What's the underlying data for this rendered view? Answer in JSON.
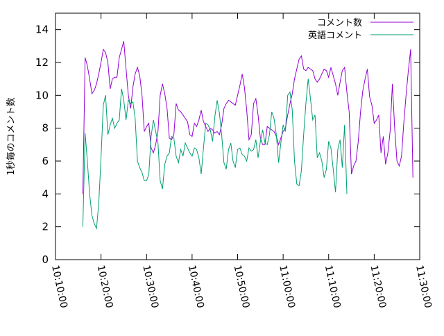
{
  "chart_data": {
    "type": "line",
    "title": "",
    "xlabel": "",
    "ylabel": "1秒毎のコメント数",
    "ylim": [
      0,
      15
    ],
    "xlim": [
      "10:10:00",
      "11:30:00"
    ],
    "y_ticks": [
      "0",
      "2",
      "4",
      "6",
      "8",
      "10",
      "12",
      "14"
    ],
    "x_ticks": [
      "10:10:00",
      "10:20:00",
      "10:30:00",
      "10:40:00",
      "10:50:00",
      "11:00:00",
      "11:10:00",
      "11:20:00",
      "11:30:00"
    ],
    "x_tick_times": [
      10.1667,
      10.3333,
      10.5,
      10.6667,
      10.8333,
      11.0,
      11.1667,
      11.3333,
      11.5
    ],
    "grid": false,
    "legend_position": "top-right",
    "series": [
      {
        "name": "コメント数",
        "color": "#9400d3",
        "points": [
          [
            "10:16:00",
            4.0
          ],
          [
            "10:16:30",
            12.3
          ],
          [
            "10:17:00",
            11.8
          ],
          [
            "10:17:30",
            11.0
          ],
          [
            "10:18:00",
            10.1
          ],
          [
            "10:18:30",
            10.3
          ],
          [
            "10:19:00",
            10.7
          ],
          [
            "10:19:30",
            11.3
          ],
          [
            "10:20:00",
            12.0
          ],
          [
            "10:20:30",
            12.8
          ],
          [
            "10:21:00",
            12.6
          ],
          [
            "10:21:30",
            12.0
          ],
          [
            "10:22:00",
            10.4
          ],
          [
            "10:22:30",
            11.0
          ],
          [
            "10:23:00",
            11.1
          ],
          [
            "10:23:30",
            11.1
          ],
          [
            "10:24:00",
            12.3
          ],
          [
            "10:24:30",
            12.8
          ],
          [
            "10:25:00",
            13.3
          ],
          [
            "10:25:30",
            11.6
          ],
          [
            "10:26:00",
            10.0
          ],
          [
            "10:26:30",
            9.2
          ],
          [
            "10:27:00",
            10.5
          ],
          [
            "10:27:30",
            11.3
          ],
          [
            "10:28:00",
            11.7
          ],
          [
            "10:28:30",
            11.2
          ],
          [
            "10:29:00",
            10.0
          ],
          [
            "10:29:30",
            7.8
          ],
          [
            "10:30:00",
            8.1
          ],
          [
            "10:30:30",
            8.3
          ],
          [
            "10:31:00",
            6.8
          ],
          [
            "10:31:30",
            6.5
          ],
          [
            "10:32:00",
            7.0
          ],
          [
            "10:32:30",
            7.8
          ],
          [
            "10:33:00",
            10.0
          ],
          [
            "10:33:30",
            10.7
          ],
          [
            "10:34:00",
            10.1
          ],
          [
            "10:34:30",
            9.2
          ],
          [
            "10:35:00",
            7.4
          ],
          [
            "10:35:30",
            7.3
          ],
          [
            "10:36:00",
            7.6
          ],
          [
            "10:36:30",
            9.5
          ],
          [
            "10:37:00",
            9.1
          ],
          [
            "10:37:30",
            9.0
          ],
          [
            "10:38:00",
            8.8
          ],
          [
            "10:38:30",
            8.6
          ],
          [
            "10:39:00",
            8.4
          ],
          [
            "10:39:30",
            7.6
          ],
          [
            "10:40:00",
            7.5
          ],
          [
            "10:40:30",
            8.3
          ],
          [
            "10:41:00",
            8.1
          ],
          [
            "10:41:30",
            8.5
          ],
          [
            "10:42:00",
            9.1
          ],
          [
            "10:42:30",
            8.4
          ],
          [
            "10:43:00",
            8.1
          ],
          [
            "10:43:30",
            7.8
          ],
          [
            "10:44:00",
            8.0
          ],
          [
            "10:44:30",
            7.9
          ],
          [
            "10:45:00",
            7.7
          ],
          [
            "10:45:30",
            7.8
          ],
          [
            "10:46:00",
            7.6
          ],
          [
            "10:46:30",
            8.2
          ],
          [
            "10:47:00",
            9.2
          ],
          [
            "10:47:30",
            9.5
          ],
          [
            "10:48:00",
            9.7
          ],
          [
            "10:48:30",
            9.6
          ],
          [
            "10:49:00",
            9.5
          ],
          [
            "10:49:30",
            9.4
          ],
          [
            "10:50:00",
            10.0
          ],
          [
            "10:50:30",
            10.6
          ],
          [
            "10:51:00",
            11.3
          ],
          [
            "10:51:30",
            10.5
          ],
          [
            "10:52:00",
            9.1
          ],
          [
            "10:52:30",
            7.3
          ],
          [
            "10:53:00",
            7.6
          ],
          [
            "10:53:30",
            9.5
          ],
          [
            "10:54:00",
            9.8
          ],
          [
            "10:54:30",
            8.8
          ],
          [
            "10:55:00",
            7.4
          ],
          [
            "10:55:30",
            7.0
          ],
          [
            "10:56:00",
            7.0
          ],
          [
            "10:56:30",
            8.1
          ],
          [
            "10:57:00",
            8.0
          ],
          [
            "10:57:30",
            7.9
          ],
          [
            "10:58:00",
            7.8
          ],
          [
            "10:58:30",
            7.5
          ],
          [
            "10:59:00",
            7.0
          ],
          [
            "10:59:30",
            7.4
          ],
          [
            "11:00:00",
            7.8
          ],
          [
            "11:00:30",
            8.0
          ],
          [
            "11:01:00",
            8.8
          ],
          [
            "11:01:30",
            9.5
          ],
          [
            "11:02:00",
            10.1
          ],
          [
            "11:02:30",
            11.0
          ],
          [
            "11:03:00",
            11.6
          ],
          [
            "11:03:30",
            12.2
          ],
          [
            "11:04:00",
            12.4
          ],
          [
            "11:04:30",
            11.6
          ],
          [
            "11:05:00",
            11.5
          ],
          [
            "11:05:30",
            11.7
          ],
          [
            "11:06:00",
            11.6
          ],
          [
            "11:06:30",
            11.5
          ],
          [
            "11:07:00",
            11.0
          ],
          [
            "11:07:30",
            10.8
          ],
          [
            "11:08:00",
            11.0
          ],
          [
            "11:08:30",
            11.3
          ],
          [
            "11:09:00",
            11.6
          ],
          [
            "11:09:30",
            11.5
          ],
          [
            "11:10:00",
            11.1
          ],
          [
            "11:10:30",
            11.7
          ],
          [
            "11:11:00",
            11.2
          ],
          [
            "11:11:30",
            10.7
          ],
          [
            "11:12:00",
            10.0
          ],
          [
            "11:12:30",
            10.8
          ],
          [
            "11:13:00",
            11.5
          ],
          [
            "11:13:30",
            11.7
          ],
          [
            "11:14:00",
            10.2
          ],
          [
            "11:14:30",
            9.0
          ],
          [
            "11:15:00",
            5.2
          ],
          [
            "11:15:30",
            5.7
          ],
          [
            "11:16:00",
            6.0
          ],
          [
            "11:16:30",
            7.2
          ],
          [
            "11:17:00",
            9.0
          ],
          [
            "11:17:30",
            10.3
          ],
          [
            "11:18:00",
            11.0
          ],
          [
            "11:18:30",
            11.6
          ],
          [
            "11:19:00",
            9.9
          ],
          [
            "11:19:30",
            9.4
          ],
          [
            "11:20:00",
            8.3
          ],
          [
            "11:20:30",
            8.5
          ],
          [
            "11:21:00",
            8.8
          ],
          [
            "11:21:30",
            6.5
          ],
          [
            "11:22:00",
            7.5
          ],
          [
            "11:22:30",
            5.8
          ],
          [
            "11:23:00",
            6.5
          ],
          [
            "11:23:30",
            7.8
          ],
          [
            "11:24:00",
            10.7
          ],
          [
            "11:24:30",
            8.0
          ],
          [
            "11:25:00",
            6.0
          ],
          [
            "11:25:30",
            5.7
          ],
          [
            "11:26:00",
            6.3
          ],
          [
            "11:26:30",
            8.3
          ],
          [
            "11:27:00",
            10.0
          ],
          [
            "11:27:30",
            11.5
          ],
          [
            "11:28:00",
            12.8
          ],
          [
            "11:28:30",
            5.0
          ]
        ]
      },
      {
        "name": "英語コメント",
        "color": "#009e73",
        "points": [
          [
            "10:16:00",
            2.0
          ],
          [
            "10:16:30",
            7.7
          ],
          [
            "10:17:00",
            6.0
          ],
          [
            "10:17:30",
            4.0
          ],
          [
            "10:18:00",
            2.7
          ],
          [
            "10:18:30",
            2.2
          ],
          [
            "10:19:00",
            1.9
          ],
          [
            "10:19:30",
            3.4
          ],
          [
            "10:20:00",
            6.2
          ],
          [
            "10:20:30",
            9.4
          ],
          [
            "10:21:00",
            10.0
          ],
          [
            "10:21:30",
            7.6
          ],
          [
            "10:22:00",
            8.2
          ],
          [
            "10:22:30",
            8.6
          ],
          [
            "10:23:00",
            8.0
          ],
          [
            "10:23:30",
            8.3
          ],
          [
            "10:24:00",
            8.5
          ],
          [
            "10:24:30",
            10.4
          ],
          [
            "10:25:00",
            9.7
          ],
          [
            "10:25:30",
            8.5
          ],
          [
            "10:26:00",
            9.7
          ],
          [
            "10:26:30",
            9.5
          ],
          [
            "10:27:00",
            9.6
          ],
          [
            "10:27:30",
            8.6
          ],
          [
            "10:28:00",
            6.0
          ],
          [
            "10:28:30",
            5.6
          ],
          [
            "10:29:00",
            5.3
          ],
          [
            "10:29:30",
            4.8
          ],
          [
            "10:30:00",
            4.8
          ],
          [
            "10:30:30",
            5.2
          ],
          [
            "10:31:00",
            7.5
          ],
          [
            "10:31:30",
            8.5
          ],
          [
            "10:32:00",
            7.8
          ],
          [
            "10:32:30",
            7.1
          ],
          [
            "10:33:00",
            4.8
          ],
          [
            "10:33:30",
            4.3
          ],
          [
            "10:34:00",
            5.8
          ],
          [
            "10:34:30",
            6.3
          ],
          [
            "10:35:00",
            6.5
          ],
          [
            "10:35:30",
            7.5
          ],
          [
            "10:36:00",
            7.4
          ],
          [
            "10:36:30",
            6.3
          ],
          [
            "10:37:00",
            5.9
          ],
          [
            "10:37:30",
            6.7
          ],
          [
            "10:38:00",
            6.3
          ],
          [
            "10:38:30",
            7.1
          ],
          [
            "10:39:00",
            6.8
          ],
          [
            "10:39:30",
            6.5
          ],
          [
            "10:40:00",
            6.3
          ],
          [
            "10:40:30",
            6.8
          ],
          [
            "10:41:00",
            6.7
          ],
          [
            "10:41:30",
            6.2
          ],
          [
            "10:42:00",
            5.2
          ],
          [
            "10:42:30",
            6.8
          ],
          [
            "10:43:00",
            8.3
          ],
          [
            "10:43:30",
            8.2
          ],
          [
            "10:44:00",
            7.9
          ],
          [
            "10:44:30",
            7.2
          ],
          [
            "10:45:00",
            8.7
          ],
          [
            "10:45:30",
            9.7
          ],
          [
            "10:46:00",
            8.9
          ],
          [
            "10:46:30",
            7.6
          ],
          [
            "10:47:00",
            5.9
          ],
          [
            "10:47:30",
            5.5
          ],
          [
            "10:48:00",
            6.7
          ],
          [
            "10:48:30",
            7.1
          ],
          [
            "10:49:00",
            6.0
          ],
          [
            "10:49:30",
            5.6
          ],
          [
            "10:50:00",
            6.7
          ],
          [
            "10:50:30",
            6.8
          ],
          [
            "10:51:00",
            6.4
          ],
          [
            "10:51:30",
            6.3
          ],
          [
            "10:52:00",
            6.0
          ],
          [
            "10:52:30",
            6.8
          ],
          [
            "10:53:00",
            6.6
          ],
          [
            "10:53:30",
            6.7
          ],
          [
            "10:54:00",
            7.3
          ],
          [
            "10:54:30",
            6.2
          ],
          [
            "10:55:00",
            7.2
          ],
          [
            "10:55:30",
            7.9
          ],
          [
            "10:56:00",
            7.1
          ],
          [
            "10:56:30",
            7.0
          ],
          [
            "10:57:00",
            7.6
          ],
          [
            "10:57:30",
            9.0
          ],
          [
            "10:58:00",
            8.6
          ],
          [
            "10:58:30",
            7.6
          ],
          [
            "10:59:00",
            5.9
          ],
          [
            "10:59:30",
            7.1
          ],
          [
            "11:00:00",
            8.2
          ],
          [
            "11:00:30",
            7.8
          ],
          [
            "11:01:00",
            10.0
          ],
          [
            "11:01:30",
            10.2
          ],
          [
            "11:02:00",
            9.1
          ],
          [
            "11:02:30",
            6.0
          ],
          [
            "11:03:00",
            4.6
          ],
          [
            "11:03:30",
            4.5
          ],
          [
            "11:04:00",
            5.4
          ],
          [
            "11:04:30",
            7.6
          ],
          [
            "11:05:00",
            9.5
          ],
          [
            "11:05:30",
            11.0
          ],
          [
            "11:06:00",
            9.8
          ],
          [
            "11:06:30",
            8.5
          ],
          [
            "11:07:00",
            8.8
          ],
          [
            "11:07:30",
            6.2
          ],
          [
            "11:08:00",
            6.5
          ],
          [
            "11:08:30",
            6.0
          ],
          [
            "11:09:00",
            5.0
          ],
          [
            "11:09:30",
            5.5
          ],
          [
            "11:10:00",
            7.2
          ],
          [
            "11:10:30",
            6.8
          ],
          [
            "11:11:00",
            5.5
          ],
          [
            "11:11:30",
            4.1
          ],
          [
            "11:12:00",
            6.7
          ],
          [
            "11:12:30",
            7.3
          ],
          [
            "11:13:00",
            5.6
          ],
          [
            "11:13:30",
            8.2
          ],
          [
            "11:14:00",
            4.0
          ]
        ]
      }
    ]
  }
}
